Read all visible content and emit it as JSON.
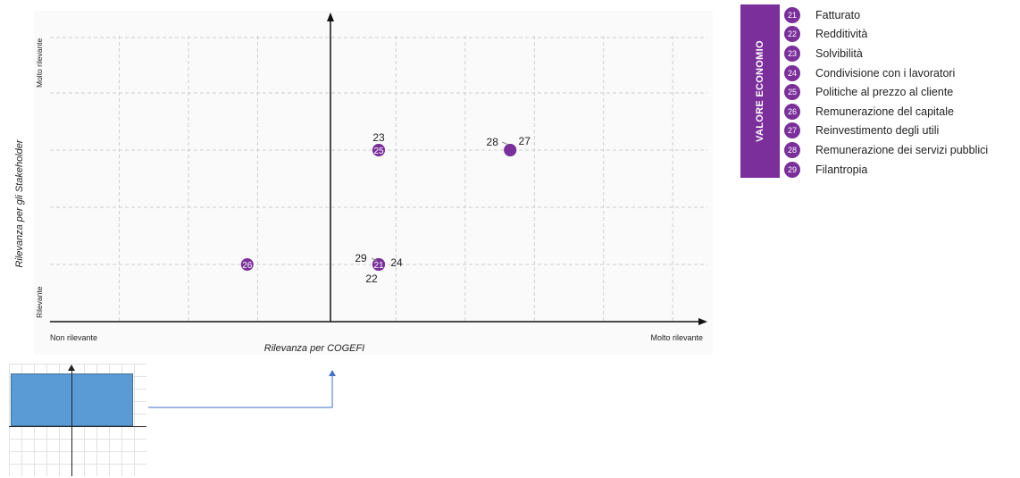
{
  "chart_data": {
    "type": "scatter",
    "xlabel": "Rilevanza per COGEFI",
    "ylabel": "Rilevanza per gli Stakeholder",
    "x_tick_labels": {
      "min": "Non rilevante",
      "max": "Molto rilevante"
    },
    "y_tick_labels": {
      "min": "Rilevante",
      "max": "Molto rilevante"
    },
    "xlim": [
      0,
      10
    ],
    "ylim": [
      0,
      5
    ],
    "grid": true,
    "points": [
      {
        "id": "21",
        "x": 5,
        "y": 1,
        "label": "21"
      },
      {
        "id": "22",
        "x": 5,
        "y": 1,
        "label": "22"
      },
      {
        "id": "23",
        "x": 5,
        "y": 3,
        "label": "23"
      },
      {
        "id": "24",
        "x": 5,
        "y": 1,
        "label": "24"
      },
      {
        "id": "25",
        "x": 5,
        "y": 3,
        "label": "25"
      },
      {
        "id": "26",
        "x": 3,
        "y": 1,
        "label": "26"
      },
      {
        "id": "27",
        "x": 7,
        "y": 3,
        "label": "27"
      },
      {
        "id": "28",
        "x": 7,
        "y": 3,
        "label": "28"
      },
      {
        "id": "29",
        "x": 5,
        "y": 1,
        "label": "29"
      }
    ]
  },
  "legend": {
    "title": "VALORE ECONOMIO",
    "items": [
      {
        "num": "21",
        "label": "Fatturato"
      },
      {
        "num": "22",
        "label": "Redditività"
      },
      {
        "num": "23",
        "label": "Solvibilità"
      },
      {
        "num": "24",
        "label": "Condivisione con i lavoratori"
      },
      {
        "num": "25",
        "label": "Politiche al prezzo al cliente"
      },
      {
        "num": "26",
        "label": "Remunerazione del capitale"
      },
      {
        "num": "27",
        "label": "Reinvestimento degli utili"
      },
      {
        "num": "28",
        "label": "Remunerazione dei servizi pubblici"
      },
      {
        "num": "29",
        "label": "Filantropia"
      }
    ]
  },
  "colors": {
    "accent": "#7b2f9a",
    "thumb_fill": "#5b9bd5",
    "connector": "#4472c4"
  }
}
